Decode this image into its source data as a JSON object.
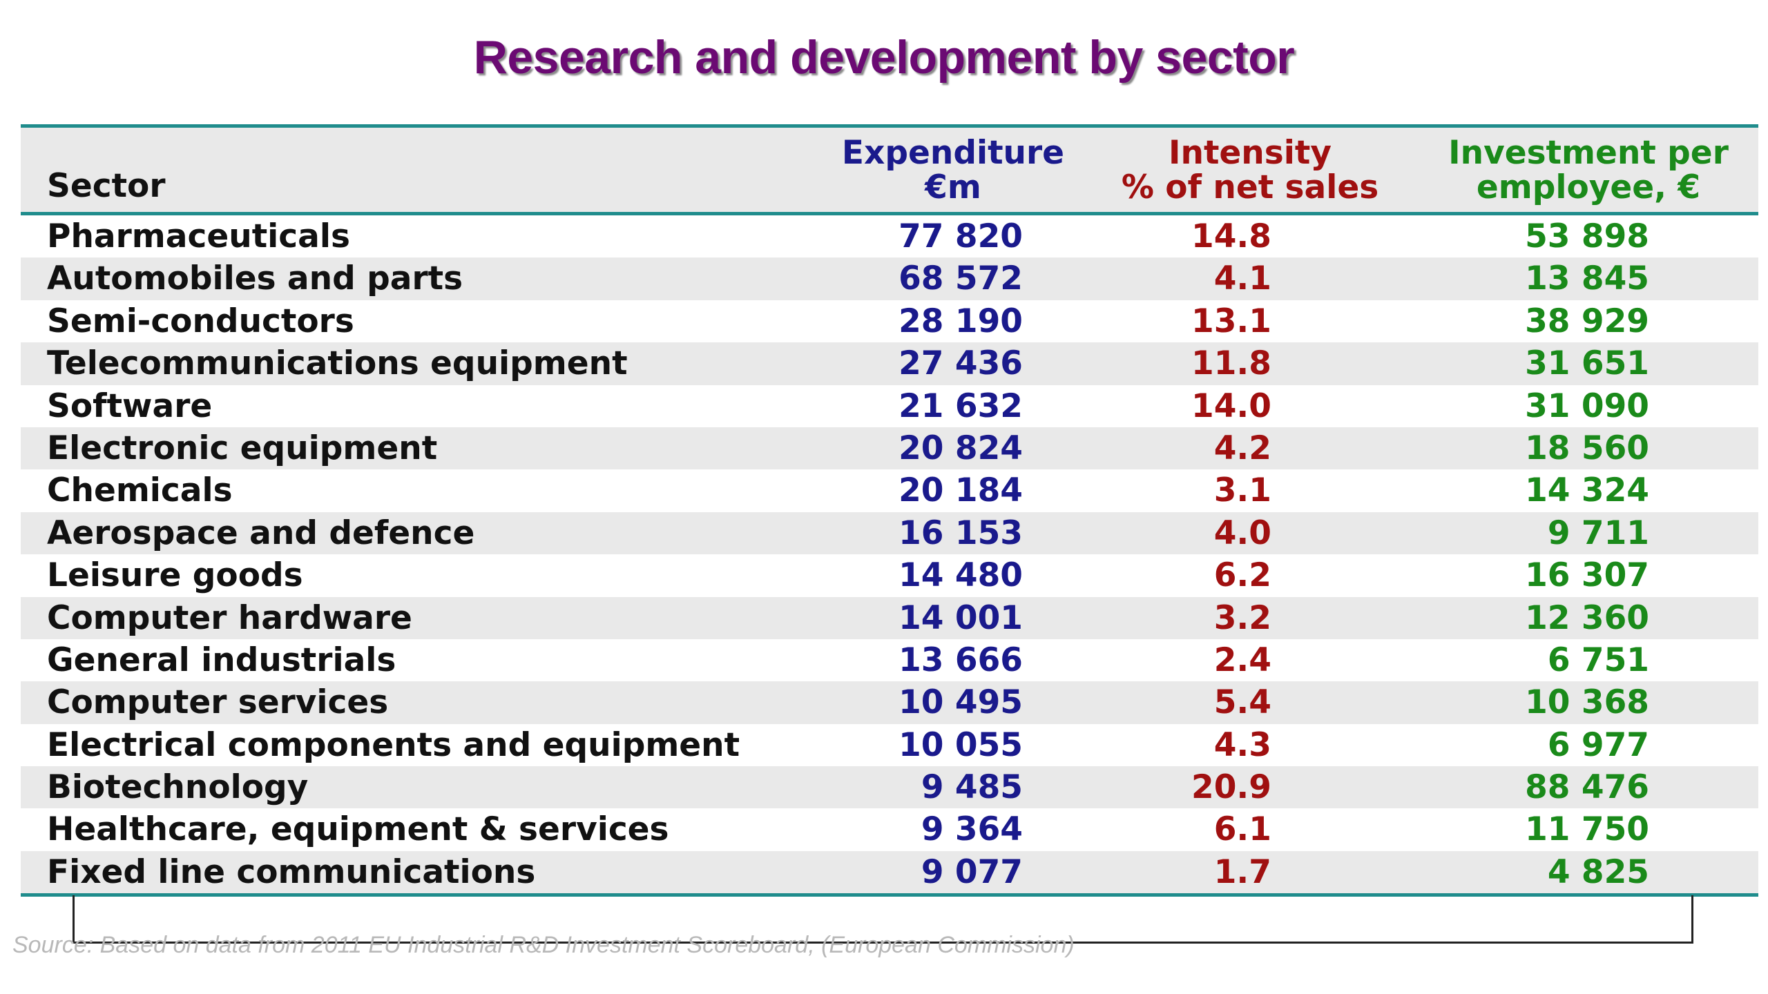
{
  "chart_data": {
    "type": "table",
    "title": "Research and development by sector",
    "columns": [
      {
        "key": "sector",
        "label_lines": [
          "Sector"
        ]
      },
      {
        "key": "expenditure",
        "label_lines": [
          "Expenditure",
          "€m"
        ]
      },
      {
        "key": "intensity",
        "label_lines": [
          "Intensity",
          "% of net sales"
        ]
      },
      {
        "key": "investment",
        "label_lines": [
          "Investment per",
          "employee, €"
        ]
      }
    ],
    "rows": [
      {
        "sector": "Pharmaceuticals",
        "expenditure": "77 820",
        "intensity": "14.8",
        "investment": "53 898"
      },
      {
        "sector": "Automobiles and parts",
        "expenditure": "68 572",
        "intensity": "4.1",
        "investment": "13 845"
      },
      {
        "sector": "Semi-conductors",
        "expenditure": "28 190",
        "intensity": "13.1",
        "investment": "38 929"
      },
      {
        "sector": "Telecommunications equipment",
        "expenditure": "27 436",
        "intensity": "11.8",
        "investment": "31 651"
      },
      {
        "sector": "Software",
        "expenditure": "21 632",
        "intensity": "14.0",
        "investment": "31 090"
      },
      {
        "sector": "Electronic equipment",
        "expenditure": "20 824",
        "intensity": "4.2",
        "investment": "18 560"
      },
      {
        "sector": "Chemicals",
        "expenditure": "20 184",
        "intensity": "3.1",
        "investment": "14 324"
      },
      {
        "sector": "Aerospace and defence",
        "expenditure": "16 153",
        "intensity": "4.0",
        "investment": "9 711"
      },
      {
        "sector": "Leisure goods",
        "expenditure": "14 480",
        "intensity": "6.2",
        "investment": "16 307"
      },
      {
        "sector": "Computer hardware",
        "expenditure": "14 001",
        "intensity": "3.2",
        "investment": "12 360"
      },
      {
        "sector": "General industrials",
        "expenditure": "13 666",
        "intensity": "2.4",
        "investment": "6 751"
      },
      {
        "sector": "Computer services",
        "expenditure": "10 495",
        "intensity": "5.4",
        "investment": "10 368"
      },
      {
        "sector": "Electrical components and equipment",
        "expenditure": "10 055",
        "intensity": "4.3",
        "investment": "6 977"
      },
      {
        "sector": "Biotechnology",
        "expenditure": "9 485",
        "intensity": "20.9",
        "investment": "88 476"
      },
      {
        "sector": "Healthcare, equipment & services",
        "expenditure": "9 364",
        "intensity": "6.1",
        "investment": "11 750"
      },
      {
        "sector": "Fixed line communications",
        "expenditure": "9 077",
        "intensity": "1.7",
        "investment": "4 825"
      }
    ],
    "source": "Source: Based on data from 2011 EU Industrial R&D Investment Scoreboard, (European Commission)",
    "colors": {
      "title": "#6b0a73",
      "sector": "#111111",
      "expenditure": "#1a1a8c",
      "intensity": "#a01010",
      "investment": "#1a8a1a",
      "rule": "#1f8c8c",
      "stripe": "#e9e9e9"
    }
  }
}
